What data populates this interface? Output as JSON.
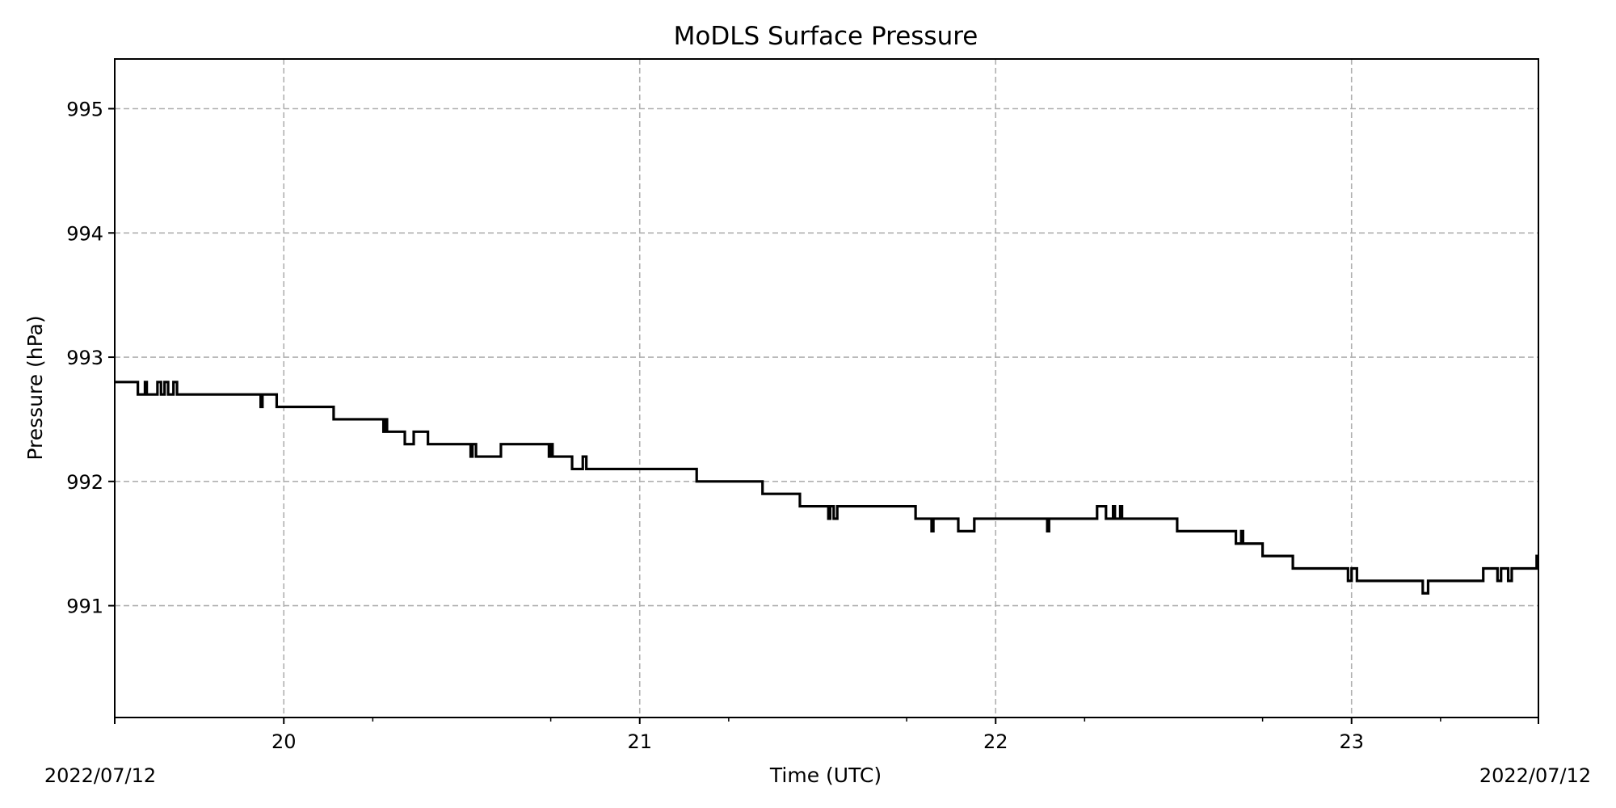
{
  "chart_data": {
    "type": "line",
    "title": "MoDLS Surface Pressure",
    "xlabel": "Time (UTC)",
    "ylabel": "Pressure (hPa)",
    "xlim": [
      19.525,
      23.525
    ],
    "ylim": [
      990.1,
      995.4
    ],
    "x_ticks": [
      20,
      21,
      22,
      23
    ],
    "x_minor_ticks": [
      20.25,
      20.75,
      21.25,
      21.75,
      22.25,
      22.75,
      23.25
    ],
    "y_ticks": [
      991,
      992,
      993,
      994,
      995
    ],
    "corner_labels": {
      "left": "2022/07/12",
      "right": "2022/07/12"
    },
    "grid": true,
    "legend": "none",
    "line_color": "#000000",
    "drawstyle": "steps",
    "series": [
      {
        "x": [
          19.525,
          19.59,
          19.61,
          19.615,
          19.645,
          19.655,
          19.665,
          19.675,
          19.69,
          19.7,
          19.935,
          19.94,
          19.98,
          20.14,
          20.28,
          20.285,
          20.29,
          20.34,
          20.365,
          20.405,
          20.525,
          20.53,
          20.54,
          20.61,
          20.745,
          20.75,
          20.755,
          20.81,
          20.84,
          20.85,
          20.855,
          21.16,
          21.345,
          21.45,
          21.53,
          21.535,
          21.545,
          21.555,
          21.775,
          21.82,
          21.825,
          21.83,
          21.895,
          21.94,
          22.145,
          22.15,
          22.285,
          22.31,
          22.33,
          22.335,
          22.35,
          22.355,
          22.51,
          22.515,
          22.675,
          22.69,
          22.695,
          22.75,
          22.835,
          22.845,
          22.965,
          22.99,
          23.0,
          23.015,
          23.2,
          23.215,
          23.37,
          23.38,
          23.41,
          23.42,
          23.44,
          23.45,
          23.52,
          23.525
        ],
        "y": [
          992.8,
          992.7,
          992.8,
          992.7,
          992.8,
          992.7,
          992.8,
          992.7,
          992.8,
          992.7,
          992.6,
          992.7,
          992.6,
          992.5,
          992.4,
          992.5,
          992.4,
          992.3,
          992.4,
          992.3,
          992.2,
          992.3,
          992.2,
          992.3,
          992.2,
          992.3,
          992.2,
          992.1,
          992.2,
          992.1,
          992.1,
          992.0,
          991.9,
          991.8,
          991.7,
          991.8,
          991.7,
          991.8,
          991.7,
          991.6,
          991.7,
          991.7,
          991.6,
          991.7,
          991.6,
          991.7,
          991.8,
          991.7,
          991.8,
          991.7,
          991.8,
          991.7,
          991.6,
          991.6,
          991.5,
          991.6,
          991.5,
          991.4,
          991.3,
          991.3,
          991.3,
          991.2,
          991.3,
          991.2,
          991.1,
          991.2,
          991.3,
          991.3,
          991.2,
          991.3,
          991.2,
          991.3,
          991.4,
          991.4
        ]
      }
    ]
  }
}
